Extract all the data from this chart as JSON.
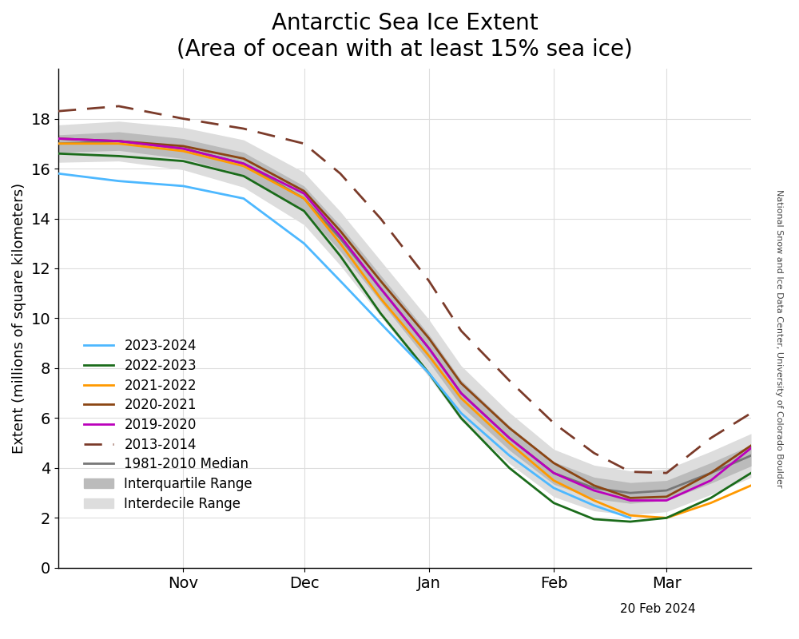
{
  "title": "Antarctic Sea Ice Extent\n(Area of ocean with at least 15% sea ice)",
  "ylabel": "Extent (millions of square kilometers)",
  "xlabel_date": "20 Feb 2024",
  "watermark": "National Snow and Ice Data Center, University of Colorado Boulder",
  "ylim": [
    0,
    20
  ],
  "yticks": [
    0,
    2,
    4,
    6,
    8,
    10,
    12,
    14,
    16,
    18
  ],
  "colors": {
    "2023-2024": "#4DB8FF",
    "2022-2023": "#1A6B1A",
    "2021-2022": "#FF9900",
    "2020-2021": "#8B4513",
    "2019-2020": "#BB00BB",
    "2013-2014": "#7B3B2A",
    "median": "#777777",
    "interquartile": "#BBBBBB",
    "interdecile": "#DDDDDD"
  },
  "xlim_start": 0,
  "xlim_end": 172,
  "xtick_positions": [
    31,
    61,
    92,
    123,
    151
  ],
  "xtick_labels": [
    "Nov",
    "Dec",
    "Jan",
    "Feb",
    "Mar"
  ],
  "title_fontsize": 20,
  "axis_fontsize": 13,
  "tick_fontsize": 14,
  "legend_fontsize": 12,
  "date_fontsize": 11,
  "watermark_fontsize": 8
}
